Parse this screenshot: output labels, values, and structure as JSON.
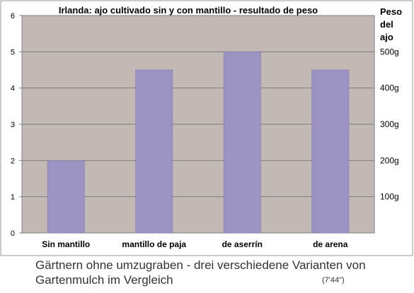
{
  "chart_data": {
    "type": "bar",
    "title": "Irlanda: ajo cultivado sin y con mantillo - resultado de peso",
    "categories": [
      "Sin mantillo",
      "mantillo de paja",
      "de aserrín",
      "de arena"
    ],
    "values": [
      2,
      4.5,
      5,
      4.5
    ],
    "ylim": [
      0,
      6
    ],
    "yticks": [
      0,
      1,
      2,
      3,
      4,
      5,
      6
    ],
    "secondary_axis": {
      "title": [
        "Peso",
        "del",
        "ajo"
      ],
      "ticks": [
        {
          "value": 5,
          "label": "500g"
        },
        {
          "value": 4,
          "label": "400g"
        },
        {
          "value": 3,
          "label": "300g"
        },
        {
          "value": 2,
          "label": "200g"
        },
        {
          "value": 1,
          "label": "100g"
        }
      ]
    },
    "grid": true,
    "colors": {
      "bar": "#9b93c2",
      "plot_background": "#c2b9b5",
      "gridline": "#7d7d7d"
    }
  },
  "caption": {
    "line1": "Gärtnern ohne umzugraben - drei verschiedene Varianten von",
    "line2": "Gartenmulch im Vergleich",
    "time": "(7'44\")"
  }
}
